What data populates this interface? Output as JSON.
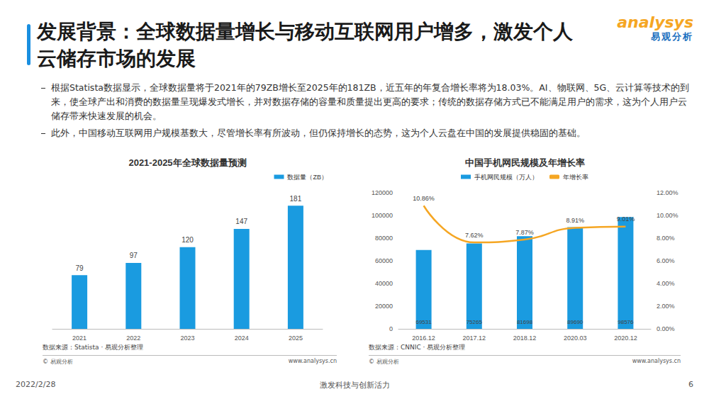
{
  "page": {
    "title": "发展背景：全球数据量增长与移动互联网用户增多，激发个人云储存市场的发展",
    "bullets": [
      "根据Statista数据显示，全球数据量将于2021年的79ZB增长至2025年的181ZB，近五年的年复合增长率将为18.03%。AI、物联网、5G、云计算等技术的到来，使全球产出和消费的数据量呈现爆发式增长，并对数据存储的容量和质量提出更高的要求；传统的数据存储方式已不能满足用户的需求，这为个人用户云储存带来快速发展的机会。",
      "此外，中国移动互联网用户规模基数大，尽管增长率有所波动，但仍保持增长的态势，这为个人云盘在中国的发展提供稳固的基础。"
    ],
    "logo": {
      "brand": "analysys",
      "name": "易观分析"
    },
    "footer": {
      "date": "2022/2/28",
      "slogan": "激发科技与创新活力",
      "page": "6"
    }
  },
  "chart_data": [
    {
      "type": "bar",
      "title": "2021-2025年全球数据量预测",
      "categories": [
        "2021",
        "2022",
        "2023",
        "2024",
        "2025"
      ],
      "series": [
        {
          "name": "数据量（ZB）",
          "color": "#1a9be0",
          "values": [
            79,
            97,
            120,
            147,
            181
          ]
        }
      ],
      "ylim": [
        0,
        200
      ],
      "tick_labels": "x",
      "grid": false,
      "legend": "top-right",
      "data_labels": true,
      "source": "数据来源：Statista · 易观分析整理",
      "copyright": "© 易观分析",
      "website": "www.analysys.cn"
    },
    {
      "type": "bar",
      "title": "中国手机网民规模及年增长率",
      "categories": [
        "2016.12",
        "2017.12",
        "2018.12",
        "2020.03",
        "2020.12"
      ],
      "series": [
        {
          "name": "手机网民规模（万人）",
          "type": "bar",
          "color": "#1a9be0",
          "values": [
            69531,
            75265,
            81698,
            89690,
            98576
          ]
        },
        {
          "name": "年增长率",
          "type": "line",
          "axis": "y2",
          "color": "#f5a623",
          "marker": "none",
          "line_style": "solid",
          "values": [
            10.86,
            7.62,
            7.87,
            8.91,
            9.01
          ],
          "value_labels": [
            "10.86%",
            "7.62%",
            "7.87%",
            "8.91%",
            "9.01%"
          ]
        }
      ],
      "ylim": [
        0,
        120000
      ],
      "yticks": [
        0,
        20000,
        40000,
        60000,
        80000,
        100000,
        120000
      ],
      "y2lim": [
        0,
        12
      ],
      "y2ticks": [
        {
          "value": 0,
          "label": "0.00%"
        },
        {
          "value": 2,
          "label": "2.00%"
        },
        {
          "value": 4,
          "label": "4.00%"
        },
        {
          "value": 6,
          "label": "6.00%"
        },
        {
          "value": 8,
          "label": "8.00%"
        },
        {
          "value": 10,
          "label": "10.00%"
        },
        {
          "value": 12,
          "label": "12.00%"
        }
      ],
      "grid": false,
      "legend": "top",
      "data_labels": true,
      "source": "数据来源：CNNIC · 易观分析整理",
      "copyright": "© 易观分析",
      "website": "www.analysys.cn"
    }
  ]
}
